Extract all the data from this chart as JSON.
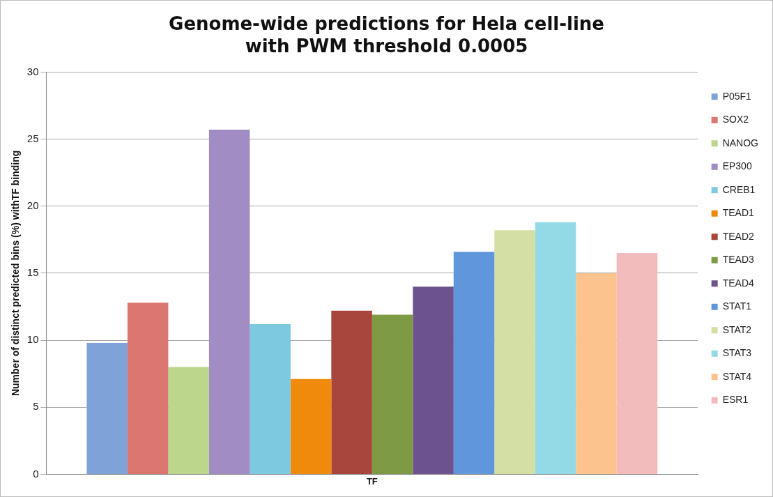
{
  "chart_data": {
    "type": "bar",
    "title": "Genome-wide predictions for Hela cell-line\nwith PWM threshold 0.0005",
    "ylabel": "Number of distinct predicted bins (%) withTF binding",
    "categories": [
      "TF"
    ],
    "series": [
      {
        "name": "P05F1",
        "color": "#7fa3d9",
        "values": [
          9.8
        ]
      },
      {
        "name": "SOX2",
        "color": "#dc7670",
        "values": [
          12.8
        ]
      },
      {
        "name": "NANOG",
        "color": "#bcd68c",
        "values": [
          8.0
        ]
      },
      {
        "name": "EP300",
        "color": "#a18cc4",
        "values": [
          25.7
        ]
      },
      {
        "name": "CREB1",
        "color": "#7cc9e0",
        "values": [
          11.2
        ]
      },
      {
        "name": "TEAD1",
        "color": "#f08a0c",
        "values": [
          7.1
        ]
      },
      {
        "name": "TEAD2",
        "color": "#a8453d",
        "values": [
          12.2
        ]
      },
      {
        "name": "TEAD3",
        "color": "#7f9a45",
        "values": [
          11.9
        ]
      },
      {
        "name": "TEAD4",
        "color": "#6c528e",
        "values": [
          14.0
        ]
      },
      {
        "name": "STAT1",
        "color": "#5f96dc",
        "values": [
          16.6
        ]
      },
      {
        "name": "STAT2",
        "color": "#d3dfa4",
        "values": [
          18.2
        ]
      },
      {
        "name": "STAT3",
        "color": "#93d9e6",
        "values": [
          18.8
        ]
      },
      {
        "name": "STAT4",
        "color": "#fcc38e",
        "values": [
          15.0
        ]
      },
      {
        "name": "ESR1",
        "color": "#f2bcbc",
        "values": [
          16.5
        ]
      }
    ],
    "ylim": [
      0,
      30
    ],
    "yticks": [
      0,
      5,
      10,
      15,
      20,
      25,
      30
    ],
    "grid": "y",
    "legend": "right"
  }
}
